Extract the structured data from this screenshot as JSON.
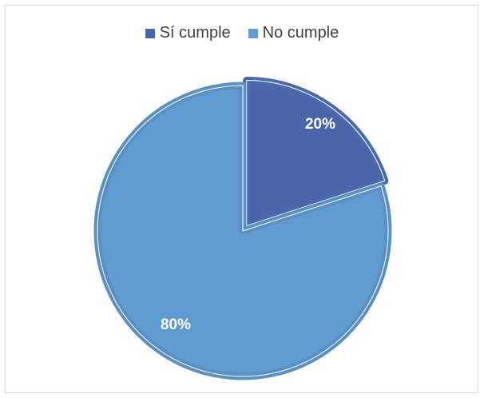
{
  "chart_data": {
    "type": "pie",
    "categories": [
      "Sí cumple",
      "No cumple"
    ],
    "values": [
      20,
      80
    ],
    "value_labels": [
      "20%",
      "80%"
    ],
    "colors": [
      "#4a65aa",
      "#5f9bd0"
    ],
    "edge_colors": [
      "#4b6aad",
      "#5b90c4"
    ],
    "legend_placement": "top",
    "exploded_slice": "Sí cumple"
  }
}
